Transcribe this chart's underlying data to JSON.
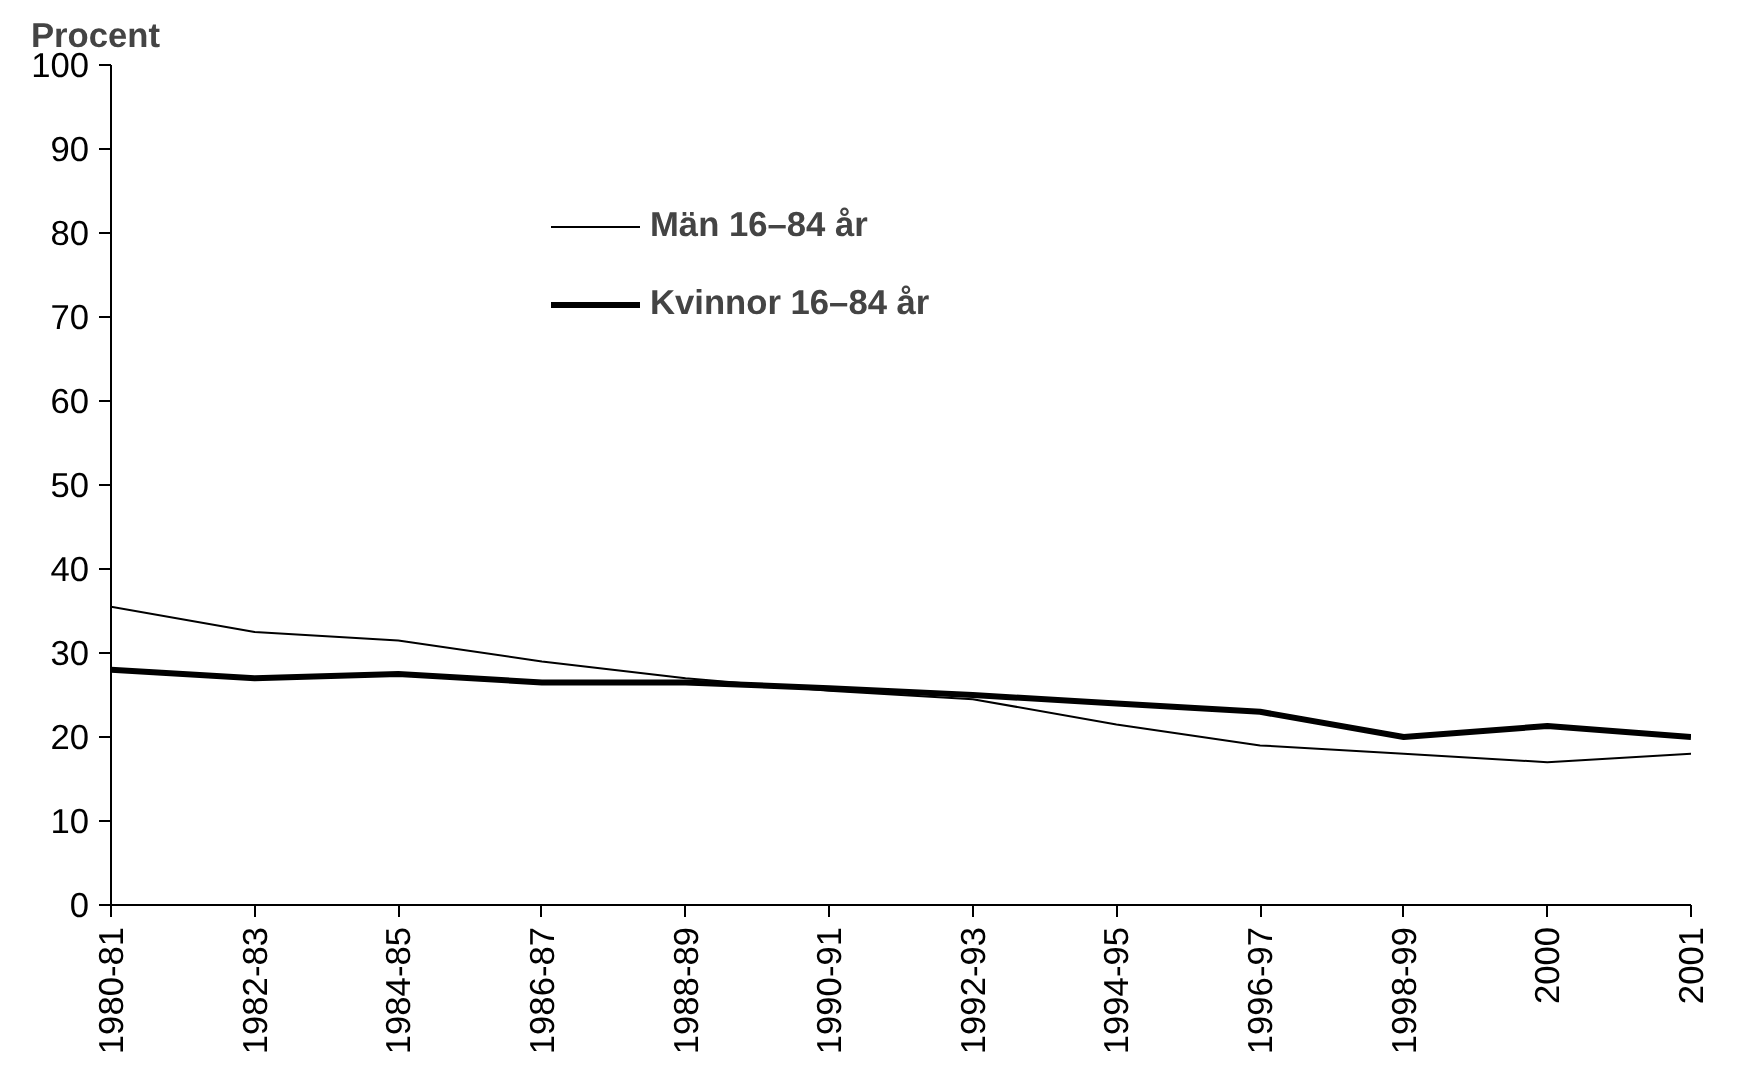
{
  "chart_data": {
    "type": "line",
    "ylabel": "Procent",
    "categories": [
      "1980-81",
      "1982-83",
      "1984-85",
      "1986-87",
      "1988-89",
      "1990-91",
      "1992-93",
      "1994-95",
      "1996-97",
      "1998-99",
      "2000",
      "2001"
    ],
    "series": [
      {
        "name": "Män 16–84 år",
        "color": "#000000",
        "values": [
          35.5,
          32.5,
          31.5,
          29,
          27,
          25.5,
          24.5,
          21.5,
          19,
          18,
          17,
          18
        ]
      },
      {
        "name": "Kvinnor 16–84 år",
        "color": "#000000",
        "values": [
          28,
          27,
          27.5,
          26.5,
          26.5,
          25.8,
          25,
          24,
          23,
          20,
          21.3,
          20
        ]
      }
    ],
    "ylim": [
      0,
      100
    ],
    "yticks": [
      0,
      10,
      20,
      30,
      40,
      50,
      60,
      70,
      80,
      90,
      100
    ],
    "grid": false,
    "legend": "top",
    "marker": "none",
    "line_style": "solid"
  }
}
